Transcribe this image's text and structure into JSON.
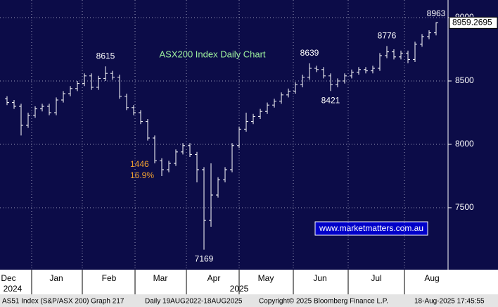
{
  "chart_data": {
    "type": "ohlc",
    "title": "ASX200 Index Daily Chart",
    "ylim": [
      7011,
      9139
    ],
    "yticks": [
      7500,
      8000,
      8500,
      9000
    ],
    "grid": true,
    "color": "#ffffff",
    "open": [
      8360,
      8330,
      8300,
      8150,
      8230,
      8280,
      8300,
      8250,
      8350,
      8400,
      8440,
      8480,
      8540,
      8450,
      8520,
      8560,
      8530,
      8380,
      8290,
      8250,
      8180,
      8050,
      7870,
      7800,
      7850,
      7940,
      7990,
      7920,
      7800,
      7400,
      7600,
      7720,
      7800,
      7990,
      8120,
      8180,
      8220,
      8260,
      8310,
      8340,
      8390,
      8420,
      8470,
      8530,
      8600,
      8590,
      8540,
      8470,
      8500,
      8540,
      8570,
      8590,
      8580,
      8600,
      8700,
      8730,
      8690,
      8720,
      8670,
      8790,
      8850,
      8880
    ],
    "high": [
      8380,
      8350,
      8320,
      8250,
      8300,
      8320,
      8320,
      8370,
      8420,
      8460,
      8500,
      8560,
      8560,
      8540,
      8615,
      8580,
      8550,
      8400,
      8310,
      8270,
      8200,
      8070,
      7890,
      7870,
      7960,
      8010,
      8010,
      7940,
      7820,
      7850,
      7740,
      7820,
      8010,
      8140,
      8250,
      8240,
      8280,
      8330,
      8360,
      8410,
      8440,
      8490,
      8550,
      8639,
      8620,
      8610,
      8560,
      8520,
      8560,
      8590,
      8610,
      8610,
      8620,
      8720,
      8776,
      8750,
      8740,
      8740,
      8810,
      8870,
      8900,
      8963
    ],
    "low": [
      8310,
      8280,
      8070,
      8130,
      8210,
      8260,
      8230,
      8230,
      8330,
      8380,
      8420,
      8460,
      8430,
      8430,
      8500,
      8510,
      8360,
      8270,
      8230,
      8160,
      8030,
      7850,
      7750,
      7780,
      7830,
      7920,
      7900,
      7700,
      7169,
      7350,
      7580,
      7700,
      7780,
      7970,
      8100,
      8160,
      8200,
      8240,
      8290,
      8320,
      8370,
      8400,
      8450,
      8510,
      8570,
      8520,
      8421,
      8450,
      8480,
      8520,
      8550,
      8560,
      8560,
      8580,
      8680,
      8670,
      8670,
      8640,
      8650,
      8770,
      8830,
      8860
    ],
    "close": [
      8330,
      8300,
      8150,
      8230,
      8280,
      8300,
      8250,
      8350,
      8400,
      8440,
      8480,
      8540,
      8450,
      8520,
      8560,
      8530,
      8380,
      8290,
      8250,
      8180,
      8050,
      7870,
      7800,
      7850,
      7940,
      7990,
      7920,
      7800,
      7400,
      7600,
      7720,
      7800,
      7990,
      8120,
      8180,
      8220,
      8260,
      8310,
      8340,
      8390,
      8420,
      8470,
      8530,
      8600,
      8590,
      8540,
      8470,
      8500,
      8540,
      8570,
      8590,
      8580,
      8600,
      8700,
      8730,
      8690,
      8720,
      8670,
      8790,
      8850,
      8880,
      8959.2695
    ],
    "months": [
      "Dec",
      "Jan",
      "Feb",
      "Mar",
      "Apr",
      "May",
      "Jun",
      "Jul",
      "Aug"
    ],
    "years": [
      "2024",
      "2025"
    ],
    "annotations": [
      "1446",
      "16.9%"
    ],
    "watermark": "www.marketmatters.com.au",
    "footer": [
      "AS51 Index (S&P/ASX 200) Graph 217",
      "Daily 19AUG2022-18AUG2025",
      "Copyright© 2025 Bloomberg Finance L.P.",
      "18-Aug-2025 17:45:55"
    ]
  }
}
